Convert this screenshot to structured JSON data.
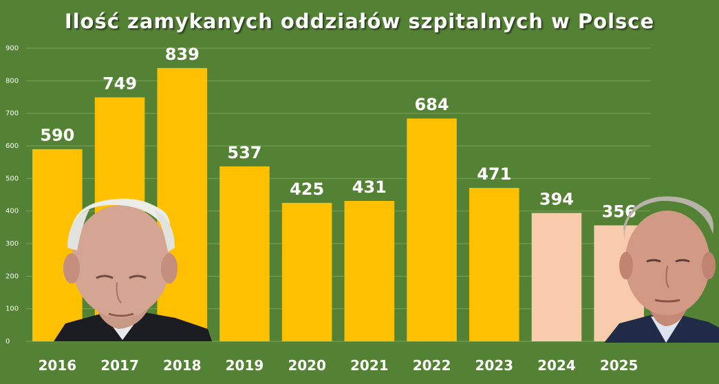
{
  "chart_data": {
    "type": "bar",
    "title": "Ilość zamykanych oddziałów szpitalnych w Polsce",
    "categories": [
      "2016",
      "2017",
      "2018",
      "2019",
      "2020",
      "2021",
      "2022",
      "2023",
      "2024",
      "2025"
    ],
    "values": [
      590,
      749,
      839,
      537,
      425,
      431,
      684,
      471,
      394,
      356
    ],
    "ylim": [
      0,
      900
    ],
    "yticks": [
      0,
      100,
      200,
      300,
      400,
      500,
      600,
      700,
      800,
      900
    ],
    "grid": true,
    "colors": {
      "background": "#548235",
      "bar": "#FFC000",
      "bar_highlight": "#F8CBAD",
      "grid": "#7AA35A",
      "text": "#FFFFFF"
    },
    "highlighted_categories": [
      "2024",
      "2025"
    ]
  },
  "images": {
    "left_photo": "portrait-photo",
    "right_photo": "portrait-photo"
  }
}
